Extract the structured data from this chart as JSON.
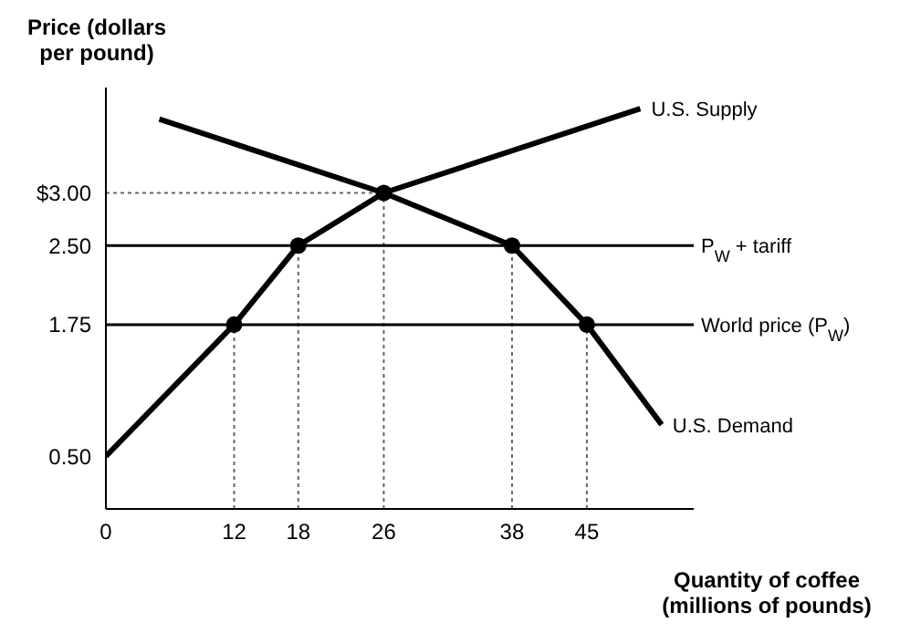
{
  "chart_data": {
    "type": "line",
    "xlabel": "Quantity of coffee (millions of pounds)",
    "ylabel": "Price (dollars per pound)",
    "xlim": [
      0,
      55
    ],
    "ylim": [
      0,
      4
    ],
    "xticks": [
      0,
      12,
      18,
      26,
      38,
      45
    ],
    "yticks": [
      {
        "value": 0.5,
        "label": "0.50"
      },
      1.75,
      {
        "value": 2.5,
        "label": "2.50"
      },
      {
        "value": 3,
        "label": "$3.00"
      }
    ],
    "grid": false,
    "legend": false,
    "marker": "none",
    "series": [
      {
        "name": "U.S. Supply",
        "color": "#000000",
        "x": [
          0,
          12,
          18,
          26,
          50
        ],
        "values": [
          0.5,
          1.75,
          2.5,
          3,
          3.8
        ]
      },
      {
        "name": "U.S. Demand",
        "color": "#000000",
        "x": [
          5,
          26,
          38,
          45,
          52
        ],
        "values": [
          3.7,
          3,
          2.5,
          1.75,
          0.8
        ]
      },
      {
        "type": "scatter",
        "marker": "circle",
        "color": "#000000",
        "x": [
          12,
          18,
          26,
          38,
          45
        ],
        "values": [
          1.75,
          2.5,
          3,
          2.5,
          1.75
        ]
      },
      {
        "line_style": "dotted",
        "color": "#666666",
        "x": [
          0,
          26
        ],
        "values": [
          3,
          3
        ]
      },
      {
        "line_style": "dotted",
        "color": "#666666",
        "x": [
          12,
          12
        ],
        "values": [
          0,
          1.75
        ]
      },
      {
        "line_style": "dotted",
        "color": "#666666",
        "x": [
          18,
          18
        ],
        "values": [
          0,
          2.5
        ]
      },
      {
        "line_style": "dotted",
        "color": "#666666",
        "x": [
          26,
          26
        ],
        "values": [
          0,
          3
        ]
      },
      {
        "line_style": "dotted",
        "color": "#666666",
        "x": [
          38,
          38
        ],
        "values": [
          0,
          2.5
        ]
      },
      {
        "line_style": "dotted",
        "color": "#666666",
        "x": [
          45,
          45
        ],
        "values": [
          0,
          1.75
        ]
      }
    ],
    "ref_lines": [
      {
        "axis": "y",
        "value": 2.5,
        "label": "P$_{W}$ + tariff",
        "color": "#000000"
      },
      {
        "axis": "y",
        "value": 1.75,
        "label": "World price (P$_{W}$)",
        "color": "#000000"
      }
    ]
  }
}
